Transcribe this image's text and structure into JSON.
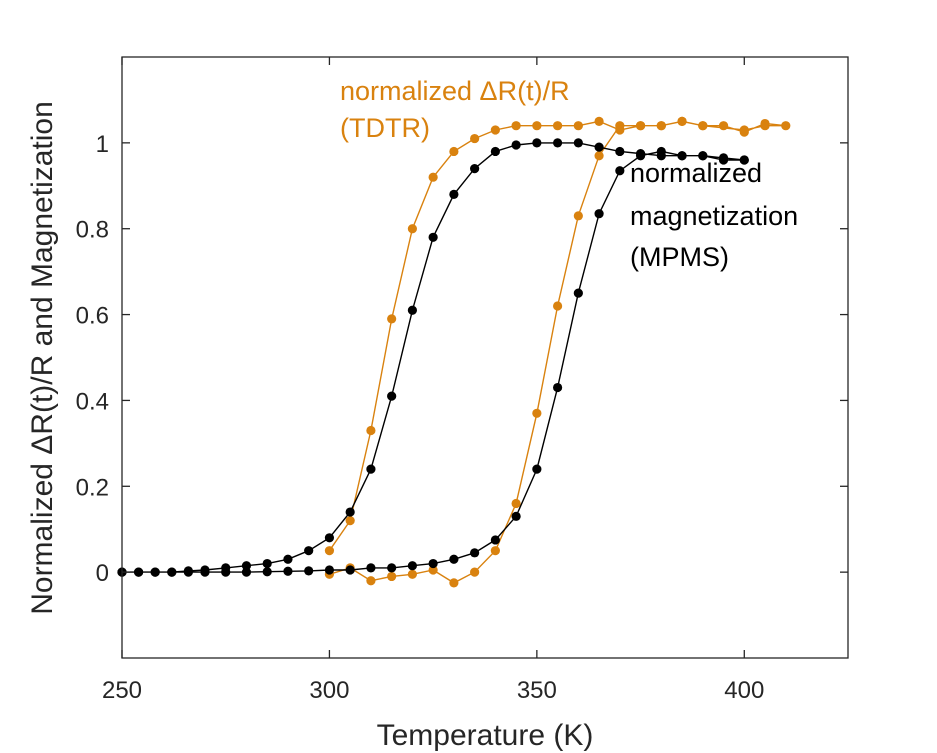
{
  "chart_data": {
    "type": "line",
    "title": "",
    "xlabel": "Temperature (K)",
    "ylabel": "Normalized ΔR(t)/R and Magnetization",
    "xlim": [
      250,
      425
    ],
    "ylim": [
      -0.2,
      1.2
    ],
    "xticks": [
      250,
      300,
      350,
      400
    ],
    "yticks": [
      0,
      0.2,
      0.4,
      0.6,
      0.8,
      1
    ],
    "ytick_labels": [
      "0",
      "0.2",
      "0.4",
      "0.6",
      "0.8",
      "1"
    ],
    "grid": false,
    "colors": {
      "tdtr": "#d9820f",
      "mpms": "#000000",
      "axis": "#262626"
    },
    "annotations": [
      {
        "name": "tdtr-label",
        "lines": [
          "normalized ΔR(t)/R",
          "(TDTR)"
        ],
        "color": "#d9820f"
      },
      {
        "name": "mpms-label",
        "lines": [
          "normalized",
          "magnetization",
          "(MPMS)"
        ],
        "color": "#000000"
      }
    ],
    "series": [
      {
        "name": "normalized ΔR(t)/R (TDTR)",
        "color": "#d9820f",
        "x": [
          300,
          305,
          310,
          315,
          320,
          325,
          330,
          335,
          340,
          345,
          350,
          355,
          360,
          365,
          370,
          375,
          380,
          385,
          390,
          400,
          405,
          410,
          405,
          400,
          395,
          390,
          385,
          380,
          375,
          370,
          365,
          360,
          355,
          350,
          345,
          340,
          335,
          330,
          325,
          320,
          315,
          310,
          305,
          300
        ],
        "y": [
          0.05,
          0.12,
          0.33,
          0.59,
          0.8,
          0.92,
          0.98,
          1.01,
          1.03,
          1.04,
          1.04,
          1.04,
          1.04,
          1.05,
          1.03,
          1.04,
          1.04,
          1.05,
          1.04,
          1.03,
          1.04,
          1.04,
          1.045,
          1.025,
          1.04,
          1.04,
          1.05,
          1.04,
          1.04,
          1.04,
          0.97,
          0.83,
          0.62,
          0.37,
          0.16,
          0.05,
          0.0,
          -0.025,
          0.005,
          -0.005,
          -0.01,
          -0.02,
          0.01,
          -0.005
        ]
      },
      {
        "name": "normalized magnetization (MPMS)",
        "color": "#000000",
        "x": [
          250,
          254,
          258,
          262,
          266,
          270,
          275,
          280,
          285,
          290,
          295,
          300,
          305,
          310,
          315,
          320,
          325,
          330,
          335,
          340,
          345,
          350,
          355,
          360,
          365,
          370,
          375,
          380,
          385,
          390,
          395,
          400,
          400,
          395,
          390,
          385,
          380,
          375,
          370,
          365,
          360,
          355,
          350,
          345,
          340,
          335,
          330,
          325,
          320,
          315,
          310,
          305,
          300,
          295,
          290,
          285,
          280,
          275,
          270,
          266,
          262,
          258,
          254,
          250
        ],
        "y": [
          0.0,
          0.0,
          0.0,
          0.0,
          0.003,
          0.005,
          0.01,
          0.015,
          0.02,
          0.03,
          0.05,
          0.08,
          0.14,
          0.24,
          0.41,
          0.61,
          0.78,
          0.88,
          0.94,
          0.98,
          0.995,
          1.0,
          1.0,
          1.0,
          0.99,
          0.98,
          0.975,
          0.97,
          0.97,
          0.97,
          0.965,
          0.96,
          0.96,
          0.96,
          0.97,
          0.97,
          0.98,
          0.97,
          0.935,
          0.835,
          0.65,
          0.43,
          0.24,
          0.13,
          0.075,
          0.045,
          0.03,
          0.02,
          0.015,
          0.01,
          0.01,
          0.005,
          0.005,
          0.003,
          0.002,
          0.001,
          0.0,
          0.0,
          0.0,
          0.0,
          0.0,
          0.0,
          0.0,
          0.0
        ]
      }
    ]
  }
}
